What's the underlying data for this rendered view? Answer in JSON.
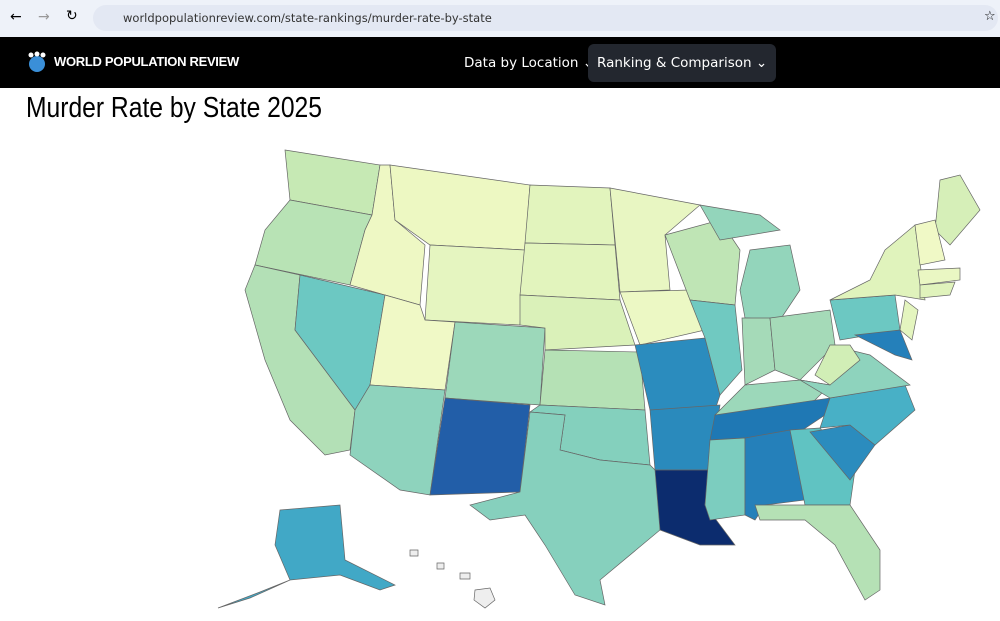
{
  "browser": {
    "url": "worldpopulationreview.com/state-rankings/murder-rate-by-state"
  },
  "header": {
    "brand": "WORLD POPULATION REVIEW",
    "nav": [
      "Data by Location",
      "Ranking & Comparison"
    ]
  },
  "page": {
    "title": "Murder Rate by State 2025"
  }
}
